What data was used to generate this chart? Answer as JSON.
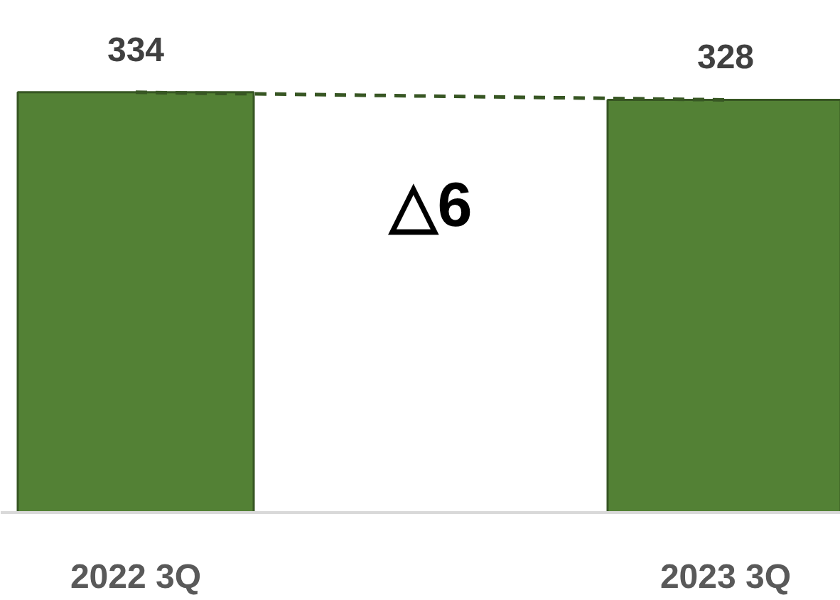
{
  "chart_data": {
    "type": "bar",
    "categories": [
      "2022 3Q",
      "2023 3Q"
    ],
    "series": [
      {
        "type": "line",
        "color": "#375623",
        "line_style": "dashed",
        "values": [
          334,
          328
        ],
        "value_labels": [
          null,
          null
        ]
      },
      {
        "color": "#538135",
        "values": [
          334,
          328
        ]
      }
    ],
    "data_labels": true,
    "annotations": [
      "△6"
    ]
  }
}
